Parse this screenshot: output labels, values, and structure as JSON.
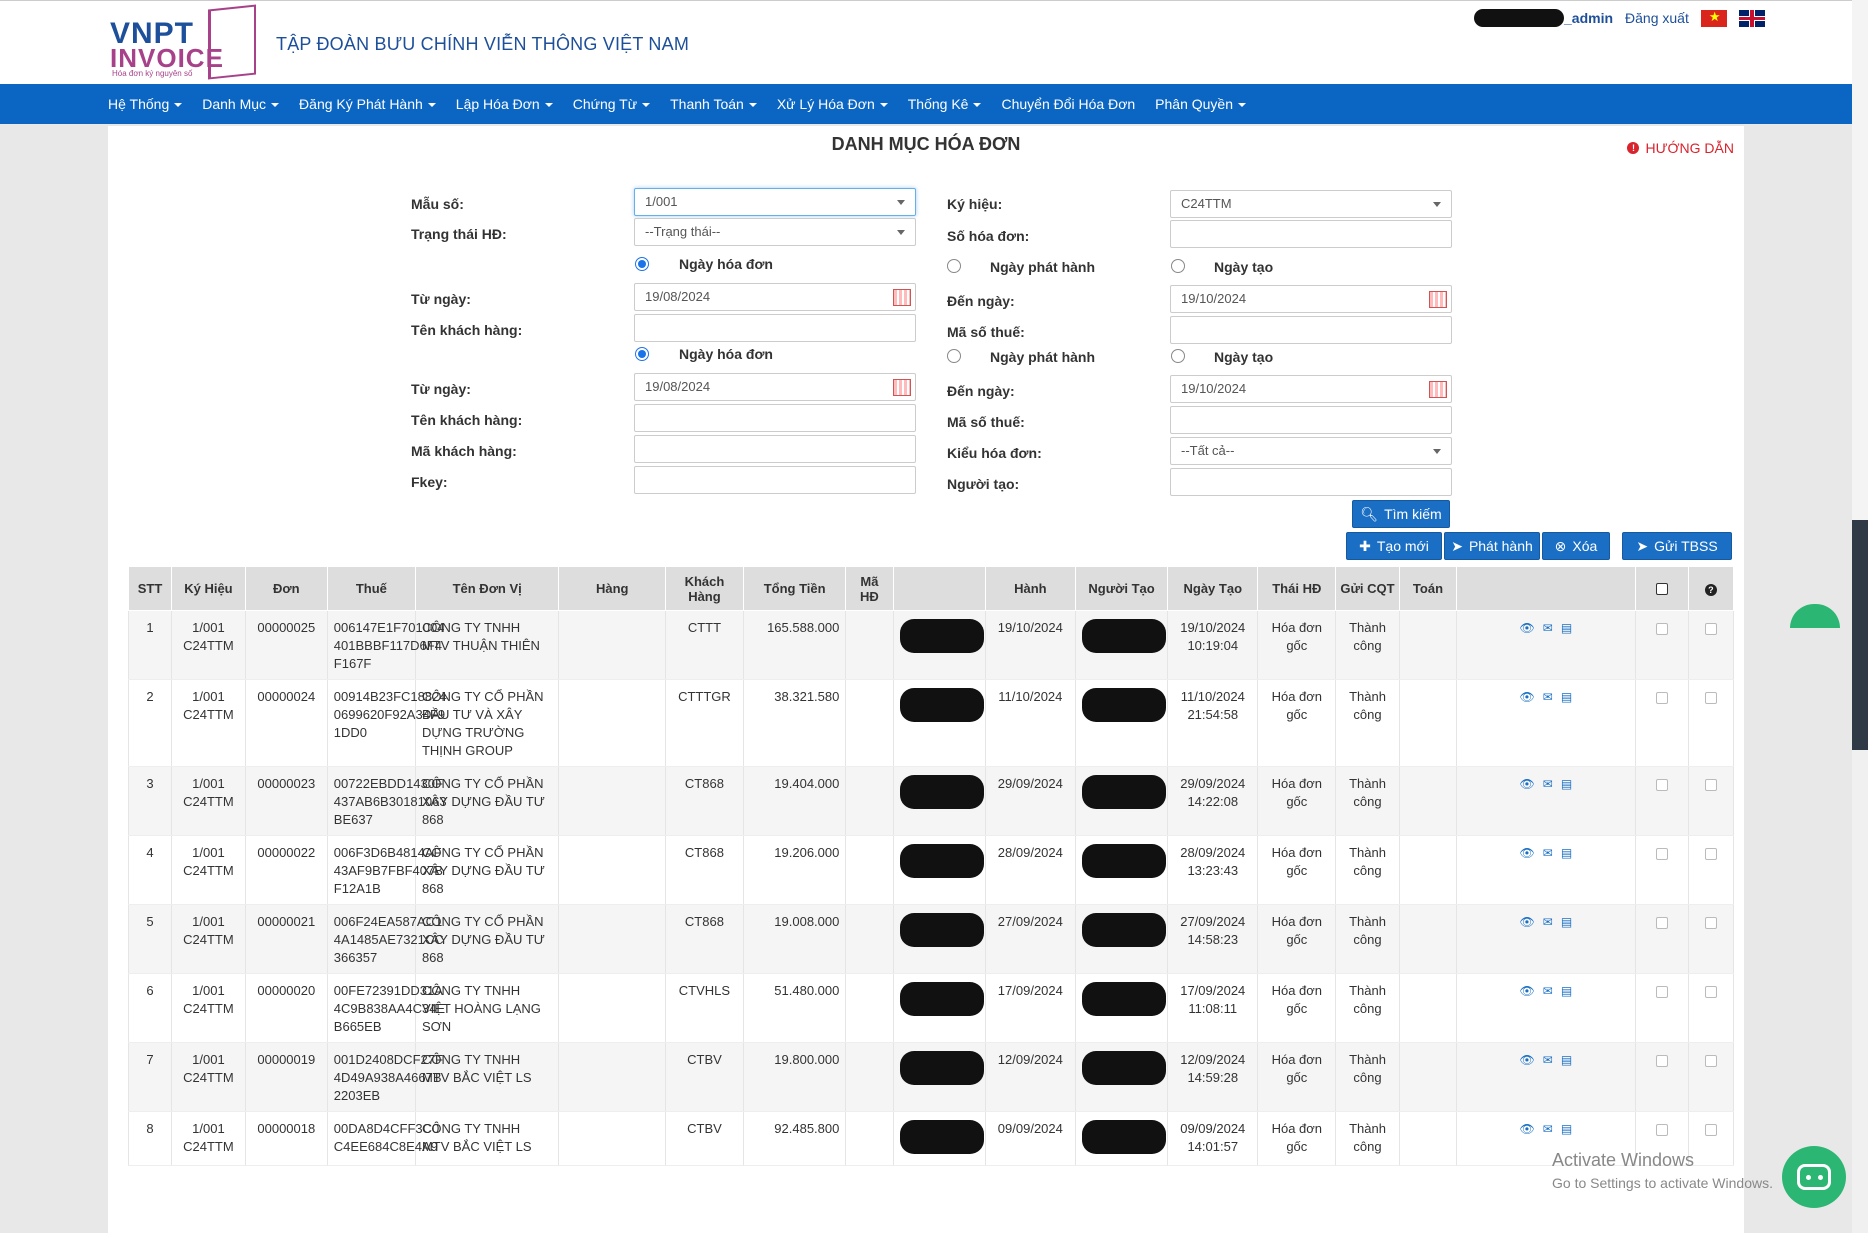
{
  "header": {
    "logo_top": "VNPT",
    "logo_bottom": "INVOICE",
    "logo_tagline": "Hóa đơn ký nguyên số",
    "company": "TẬP  ĐOÀN BƯU CHÍNH VIỄN THÔNG VIỆT NAM",
    "username": "_admin",
    "logout": "Đăng xuất"
  },
  "nav": [
    "Hệ Thống",
    "Danh Mục",
    "Đăng Ký Phát Hành",
    "Lập Hóa Đơn",
    "Chứng Từ",
    "Thanh Toán",
    "Xử Lý Hóa Đơn",
    "Thống Kê",
    "Chuyển Đổi Hóa Đơn",
    "Phân Quyền"
  ],
  "page": {
    "title": "DANH MỤC HÓA ĐƠN",
    "help": "HƯỚNG DẪN"
  },
  "form": {
    "mau_so_label": "Mẫu số:",
    "mau_so_value": "1/001",
    "ky_hieu_label": "Ký hiệu:",
    "ky_hieu_value": "C24TTM",
    "trang_thai_label": "Trạng thái HĐ:",
    "trang_thai_value": "--Trạng thái--",
    "so_hoa_don_label": "Số hóa đơn:",
    "ngay_hoa_don": "Ngày hóa đơn",
    "ngay_phat_hanh": "Ngày phát hành",
    "ngay_tao": "Ngày tạo",
    "tu_ngay_label": "Từ ngày:",
    "tu_ngay_value": "19/08/2024",
    "den_ngay_label": "Đến ngày:",
    "den_ngay_value": "19/10/2024",
    "ten_kh_label": "Tên khách hàng:",
    "ma_so_thue_label": "Mã số thuế:",
    "ma_kh_label": "Mã khách hàng:",
    "kieu_hd_label": "Kiểu hóa đơn:",
    "kieu_hd_value": "--Tất cả--",
    "fkey_label": "Fkey:",
    "nguoi_tao_label": "Người tạo:"
  },
  "buttons": {
    "search": "Tìm kiếm",
    "create": "Tạo mới",
    "publish": "Phát hành",
    "delete": "Xóa",
    "send": "Gửi TBSS"
  },
  "table": {
    "headers": [
      "STT",
      "Ký Hiệu",
      "Đơn",
      "Thuế",
      "Tên Đơn Vị",
      "Hàng",
      "Khách Hàng",
      "Tổng Tiền",
      "Mã HĐ",
      "",
      "Hành",
      "Người Tạo",
      "Ngày Tạo",
      "Thái HĐ",
      "Gửi CQT",
      "Toán",
      "",
      "",
      ""
    ],
    "rows": [
      {
        "stt": "1",
        "kh": "1/001\nC24TTM",
        "so": "00000025",
        "fkey": "006147E1F701004\n401BBBF117D6F4\nF167F",
        "ten": "CÔNG TY TNHH\nMTV THUẬN THIÊN",
        "ma": "CTTT",
        "tien": "165.588.000",
        "ngay": "19/10/2024",
        "ngaytao": "19/10/2024\n10:19:04",
        "tt": "Hóa đơn\ngốc",
        "cqt": "Thành\ncông"
      },
      {
        "stt": "2",
        "kh": "1/001\nC24TTM",
        "so": "00000024",
        "fkey": "00914B23FC18824\n0699620F92A34F9\n1DD0",
        "ten": "CÔNG TY CỔ PHẦN\nĐẦU TƯ VÀ XÂY\nDỰNG TRƯỜNG\nTHỊNH GROUP",
        "ma": "CTTTGR",
        "tien": "38.321.580",
        "ngay": "11/10/2024",
        "ngaytao": "11/10/2024\n21:54:58",
        "tt": "Hóa đơn\ngốc",
        "cqt": "Thành\ncông"
      },
      {
        "stt": "3",
        "kh": "1/001\nC24TTM",
        "so": "00000023",
        "fkey": "00722EBDD1430F\n437AB6B30181063\nBE637",
        "ten": "CÔNG TY CỔ PHẦN\nXÂY DỰNG ĐẦU TƯ\n868",
        "ma": "CT868",
        "tien": "19.404.000",
        "ngay": "29/09/2024",
        "ngaytao": "29/09/2024\n14:22:08",
        "tt": "Hóa đơn\ngốc",
        "cqt": "Thành\ncông"
      },
      {
        "stt": "4",
        "kh": "1/001\nC24TTM",
        "so": "00000022",
        "fkey": "006F3D6B4814AF\n43AF9B7FBF407B\nF12A1B",
        "ten": "CÔNG TY CỔ PHẦN\nXÂY DỰNG ĐẦU TƯ\n868",
        "ma": "CT868",
        "tien": "19.206.000",
        "ngay": "28/09/2024",
        "ngaytao": "28/09/2024\n13:23:43",
        "tt": "Hóa đơn\ngốc",
        "cqt": "Thành\ncông"
      },
      {
        "stt": "5",
        "kh": "1/001\nC24TTM",
        "so": "00000021",
        "fkey": "006F24EA587AC1\n4A1485AE7321CC\n366357",
        "ten": "CÔNG TY CỔ PHẦN\nXÂY DỰNG ĐẦU TƯ\n868",
        "ma": "CT868",
        "tien": "19.008.000",
        "ngay": "27/09/2024",
        "ngaytao": "27/09/2024\n14:58:23",
        "tt": "Hóa đơn\ngốc",
        "cqt": "Thành\ncông"
      },
      {
        "stt": "6",
        "kh": "1/001\nC24TTM",
        "so": "00000020",
        "fkey": "00FE72391DD31A\n4C9B838AA4C34E\nB665EB",
        "ten": "CÔNG TY TNHH\nVIỆT HOÀNG LẠNG\nSƠN",
        "ma": "CTVHLS",
        "tien": "51.480.000",
        "ngay": "17/09/2024",
        "ngaytao": "17/09/2024\n11:08:11",
        "tt": "Hóa đơn\ngốc",
        "cqt": "Thành\ncông"
      },
      {
        "stt": "7",
        "kh": "1/001\nC24TTM",
        "so": "00000019",
        "fkey": "001D2408DCF27F\n4D49A938A4667B\n2203EB",
        "ten": "CÔNG TY TNHH\nMTV BẮC VIỆT LS",
        "ma": "CTBV",
        "tien": "19.800.000",
        "ngay": "12/09/2024",
        "ngaytao": "12/09/2024\n14:59:28",
        "tt": "Hóa đơn\ngốc",
        "cqt": "Thành\ncông"
      },
      {
        "stt": "8",
        "kh": "1/001\nC24TTM",
        "so": "00000018",
        "fkey": "00DA8D4CFF3C0\nC4EE684C8E4A9",
        "ten": "CÔNG TY TNHH\nMTV BẮC VIỆT LS",
        "ma": "CTBV",
        "tien": "92.485.800",
        "ngay": "09/09/2024",
        "ngaytao": "09/09/2024\n14:01:57",
        "tt": "Hóa đơn\ngốc",
        "cqt": "Thành\ncông"
      }
    ]
  },
  "watermark": {
    "line1": "Activate Windows",
    "line2": "Go to Settings to activate Windows."
  }
}
